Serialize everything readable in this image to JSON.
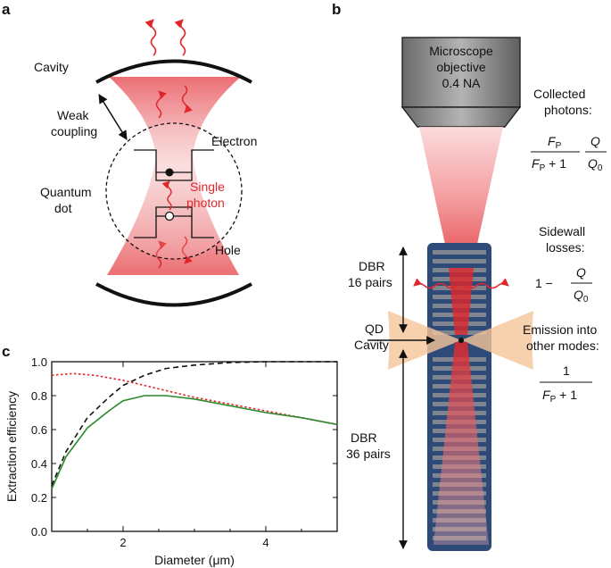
{
  "panel_a": {
    "letter": "a",
    "cavity": "Cavity",
    "weak_coupling": [
      "Weak",
      "coupling"
    ],
    "electron": "Electron",
    "quantum_dot": [
      "Quantum",
      "dot"
    ],
    "single_photon": [
      "Single",
      "photon"
    ],
    "hole": "Hole"
  },
  "panel_b": {
    "letter": "b",
    "objective": [
      "Microscope",
      "objective",
      "0.4 NA"
    ],
    "collected": [
      "Collected",
      "photons:"
    ],
    "fp": "F",
    "fp_sub": "P",
    "plus_one": " + 1",
    "q": "Q",
    "q0": "Q",
    "q0_sub": "0",
    "sidewall": [
      "Sidewall",
      "losses:"
    ],
    "one_minus": "1 −",
    "dbr_top": [
      "DBR",
      "16 pairs"
    ],
    "qd_cavity": [
      "QD",
      "Cavity"
    ],
    "emission": [
      "Emission into",
      "other modes:"
    ],
    "one": "1",
    "dbr_bottom": [
      "DBR",
      "36 pairs"
    ]
  },
  "panel_c": {
    "letter": "c"
  },
  "chart_data": {
    "type": "line",
    "xlabel": "Diameter (μm)",
    "ylabel": "Extraction efficiency",
    "xlim": [
      1,
      5
    ],
    "ylim": [
      0,
      1
    ],
    "xticks": [
      2,
      4
    ],
    "yticks": [
      0.0,
      0.2,
      0.4,
      0.6,
      0.8,
      1.0
    ],
    "series": [
      {
        "style": "dashed",
        "color": "#111111",
        "x": [
          1.0,
          1.2,
          1.5,
          1.8,
          2.0,
          2.3,
          2.6,
          3.0,
          3.5,
          4.0,
          4.5,
          5.0
        ],
        "y": [
          0.27,
          0.47,
          0.67,
          0.79,
          0.86,
          0.92,
          0.96,
          0.98,
          0.995,
          1.0,
          1.0,
          1.0
        ]
      },
      {
        "style": "dotted",
        "color": "#e0262b",
        "x": [
          1.0,
          1.3,
          1.6,
          2.0,
          2.5,
          3.0,
          3.5,
          4.0,
          4.5,
          5.0
        ],
        "y": [
          0.92,
          0.93,
          0.92,
          0.89,
          0.84,
          0.79,
          0.75,
          0.71,
          0.67,
          0.63
        ]
      },
      {
        "style": "solid",
        "color": "#2a8a2a",
        "x": [
          1.0,
          1.2,
          1.5,
          1.8,
          2.0,
          2.3,
          2.6,
          3.0,
          3.5,
          4.0,
          4.5,
          5.0
        ],
        "y": [
          0.25,
          0.44,
          0.61,
          0.71,
          0.77,
          0.8,
          0.8,
          0.78,
          0.74,
          0.7,
          0.67,
          0.63
        ]
      }
    ]
  },
  "colors": {
    "accent_red": "#e0262b",
    "pillar": "#2d4a78",
    "cone": "#f5c49a",
    "green": "#2a8a2a"
  }
}
